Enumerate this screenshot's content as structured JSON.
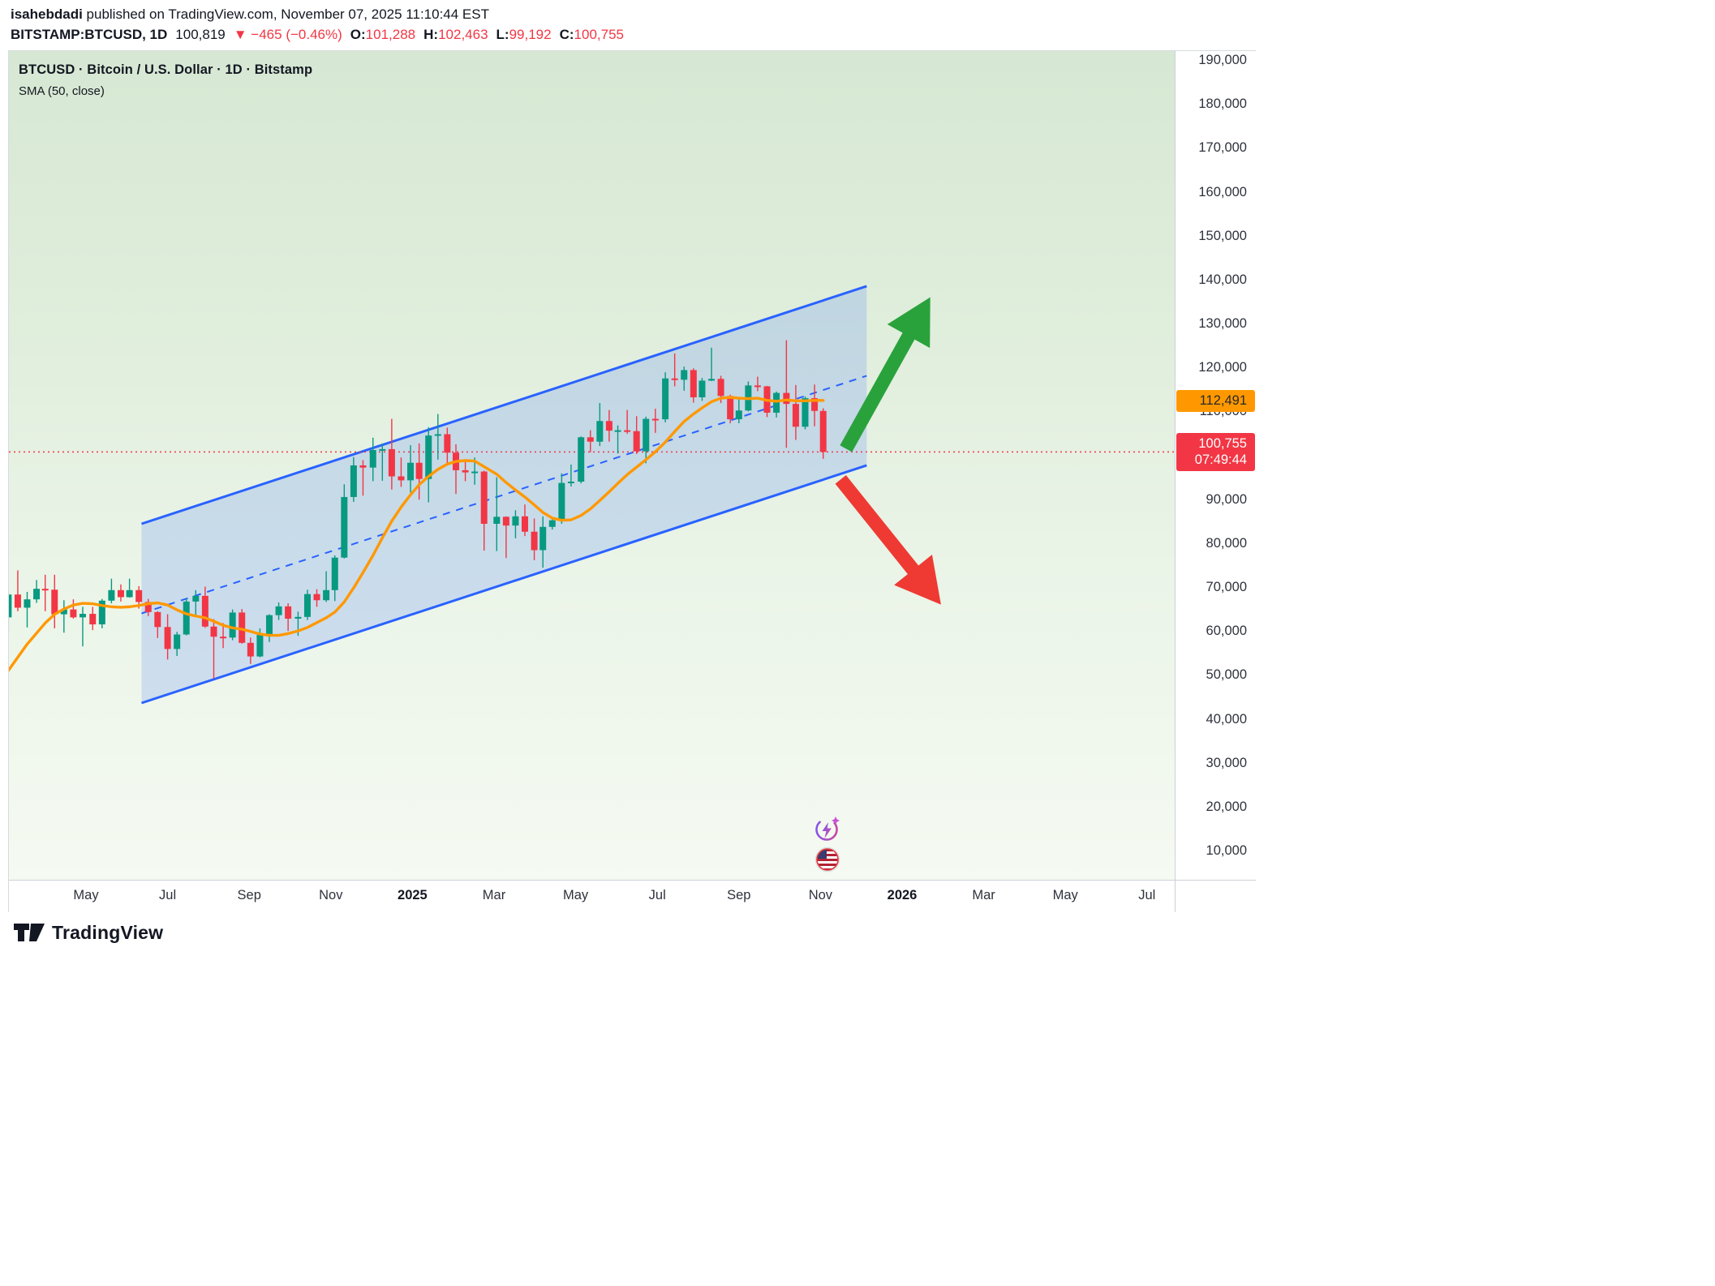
{
  "header": {
    "byline_user": "isahebdadi",
    "byline_rest": " published on TradingView.com, November 07, 2025 11:10:44 EST",
    "symbol": "BITSTAMP:BTCUSD, 1D",
    "last_price": "100,819",
    "change": "▼ −465 (−0.46%)",
    "ohlc": [
      {
        "label": "O:",
        "value": "101,288"
      },
      {
        "label": "H:",
        "value": "102,463"
      },
      {
        "label": "L:",
        "value": "99,192"
      },
      {
        "label": "C:",
        "value": "100,755"
      }
    ]
  },
  "chart": {
    "legend_title": "BTCUSD · Bitcoin / U.S. Dollar · 1D · Bitstamp",
    "legend_indicator": "SMA (50, close)",
    "sma_label": "112,491",
    "last_label": "100,755",
    "countdown": "07:49:44",
    "time_axis": [
      {
        "label": "May",
        "date": "2024-05-01",
        "bold": false
      },
      {
        "label": "Jul",
        "date": "2024-07-01",
        "bold": false
      },
      {
        "label": "Sep",
        "date": "2024-09-01",
        "bold": false
      },
      {
        "label": "Nov",
        "date": "2024-11-01",
        "bold": false
      },
      {
        "label": "2025",
        "date": "2025-01-01",
        "bold": true
      },
      {
        "label": "Mar",
        "date": "2025-03-01",
        "bold": false
      },
      {
        "label": "May",
        "date": "2025-05-01",
        "bold": false
      },
      {
        "label": "Jul",
        "date": "2025-07-01",
        "bold": false
      },
      {
        "label": "Sep",
        "date": "2025-09-01",
        "bold": false
      },
      {
        "label": "Nov",
        "date": "2025-11-01",
        "bold": false
      },
      {
        "label": "2026",
        "date": "2026-01-01",
        "bold": true
      },
      {
        "label": "Mar",
        "date": "2026-03-01",
        "bold": false
      },
      {
        "label": "May",
        "date": "2026-05-01",
        "bold": false
      },
      {
        "label": "Jul",
        "date": "2026-07-01",
        "bold": false
      }
    ]
  },
  "footer": {
    "logo_text": "TradingView"
  },
  "chart_data": {
    "type": "candlestick",
    "title": "BTCUSD · Bitcoin / U.S. Dollar · 1D · Bitstamp",
    "exchange": "Bitstamp",
    "interval": "1D",
    "price_unit": "USD",
    "note": "weekly OHLC estimates read from chart pixels",
    "ylim": [
      3000,
      192000
    ],
    "visible_time_range": [
      "2024-03-01",
      "2026-07-20"
    ],
    "gridlines": [
      190000,
      180000,
      170000,
      160000,
      150000,
      140000,
      130000,
      120000,
      110000,
      100000,
      90000,
      80000,
      70000,
      60000,
      50000,
      40000,
      30000,
      20000,
      10000
    ],
    "last_price": 100755,
    "sma_last": 112491,
    "colors": {
      "up": "#089981",
      "down": "#f23645",
      "sma": "#ff9800",
      "channel": "#2962ff"
    },
    "columns": [
      "week_start",
      "open",
      "high",
      "low",
      "close"
    ],
    "candles": [
      [
        "2024-03-04",
        63100,
        69000,
        59700,
        68300
      ],
      [
        "2024-03-11",
        68300,
        73800,
        64500,
        65300
      ],
      [
        "2024-03-18",
        65300,
        68900,
        60800,
        67200
      ],
      [
        "2024-03-25",
        67200,
        71600,
        66400,
        69600
      ],
      [
        "2024-04-01",
        69600,
        72800,
        64500,
        69400
      ],
      [
        "2024-04-08",
        69400,
        72800,
        60600,
        63800
      ],
      [
        "2024-04-15",
        63800,
        67000,
        59600,
        64900
      ],
      [
        "2024-04-22",
        64900,
        67200,
        62800,
        63100
      ],
      [
        "2024-04-29",
        63100,
        65500,
        56500,
        63900
      ],
      [
        "2024-05-06",
        63900,
        65500,
        60200,
        61500
      ],
      [
        "2024-05-13",
        61500,
        67300,
        60600,
        66900
      ],
      [
        "2024-05-20",
        66900,
        71900,
        66300,
        69300
      ],
      [
        "2024-05-27",
        69300,
        70600,
        66700,
        67700
      ],
      [
        "2024-06-03",
        67700,
        71900,
        67600,
        69300
      ],
      [
        "2024-06-10",
        69300,
        70200,
        65100,
        66600
      ],
      [
        "2024-06-17",
        66600,
        67300,
        63400,
        64300
      ],
      [
        "2024-06-24",
        64300,
        64500,
        58400,
        60900
      ],
      [
        "2024-07-01",
        60900,
        63800,
        53500,
        55900
      ],
      [
        "2024-07-08",
        55900,
        59800,
        54300,
        59200
      ],
      [
        "2024-07-15",
        59200,
        67400,
        59000,
        66700
      ],
      [
        "2024-07-22",
        66700,
        69300,
        63500,
        68000
      ],
      [
        "2024-07-29",
        68000,
        70100,
        60700,
        61000
      ],
      [
        "2024-08-05",
        61000,
        62700,
        49100,
        58700
      ],
      [
        "2024-08-12",
        58700,
        61800,
        56100,
        58500
      ],
      [
        "2024-08-19",
        58500,
        64900,
        57900,
        64200
      ],
      [
        "2024-08-26",
        64200,
        65000,
        57100,
        57300
      ],
      [
        "2024-09-02",
        57300,
        58500,
        52500,
        54200
      ],
      [
        "2024-09-09",
        54200,
        60600,
        54000,
        59100
      ],
      [
        "2024-09-16",
        59100,
        63800,
        57500,
        63600
      ],
      [
        "2024-09-23",
        63600,
        66500,
        62500,
        65600
      ],
      [
        "2024-09-30",
        65600,
        66300,
        60000,
        62800
      ],
      [
        "2024-10-07",
        62800,
        64400,
        58900,
        63200
      ],
      [
        "2024-10-14",
        63200,
        69400,
        62500,
        68400
      ],
      [
        "2024-10-21",
        68400,
        69500,
        65500,
        67000
      ],
      [
        "2024-10-28",
        67000,
        73600,
        66600,
        69300
      ],
      [
        "2024-11-04",
        69300,
        77200,
        66800,
        76700
      ],
      [
        "2024-11-11",
        76700,
        93400,
        76500,
        90500
      ],
      [
        "2024-11-18",
        90500,
        99600,
        89400,
        97700
      ],
      [
        "2024-11-25",
        97700,
        98900,
        90800,
        97200
      ],
      [
        "2024-12-02",
        97200,
        104000,
        94100,
        101200
      ],
      [
        "2024-12-09",
        101200,
        102700,
        94200,
        101400
      ],
      [
        "2024-12-16",
        101400,
        108300,
        92200,
        95200
      ],
      [
        "2024-12-23",
        95200,
        99500,
        92800,
        94300
      ],
      [
        "2024-12-30",
        94300,
        102300,
        91500,
        98300
      ],
      [
        "2025-01-06",
        98300,
        102700,
        89900,
        94600
      ],
      [
        "2025-01-13",
        94600,
        106400,
        89300,
        104500
      ],
      [
        "2025-01-20",
        104500,
        109400,
        99000,
        104800
      ],
      [
        "2025-01-27",
        104800,
        106300,
        97800,
        100600
      ],
      [
        "2025-02-03",
        100600,
        102500,
        91200,
        96600
      ],
      [
        "2025-02-10",
        96600,
        98800,
        94100,
        96100
      ],
      [
        "2025-02-17",
        96100,
        99500,
        93300,
        96300
      ],
      [
        "2025-02-24",
        96300,
        96500,
        78300,
        84400
      ],
      [
        "2025-03-03",
        84400,
        95000,
        78200,
        86000
      ],
      [
        "2025-03-10",
        86000,
        86100,
        76600,
        84000
      ],
      [
        "2025-03-17",
        84000,
        87500,
        81100,
        86100
      ],
      [
        "2025-03-24",
        86100,
        88800,
        81600,
        82600
      ],
      [
        "2025-03-31",
        82600,
        85600,
        76100,
        78400
      ],
      [
        "2025-04-07",
        78400,
        86100,
        74400,
        83700
      ],
      [
        "2025-04-14",
        83700,
        85400,
        83100,
        85200
      ],
      [
        "2025-04-21",
        85200,
        95900,
        84400,
        93700
      ],
      [
        "2025-04-28",
        93700,
        97900,
        92900,
        94000
      ],
      [
        "2025-05-05",
        94000,
        104300,
        93600,
        104100
      ],
      [
        "2025-05-12",
        104100,
        105700,
        100700,
        103100
      ],
      [
        "2025-05-19",
        103100,
        111900,
        102100,
        107800
      ],
      [
        "2025-05-26",
        107800,
        110300,
        103100,
        105600
      ],
      [
        "2025-06-02",
        105600,
        106800,
        100400,
        105700
      ],
      [
        "2025-06-09",
        105700,
        110300,
        104900,
        105500
      ],
      [
        "2025-06-16",
        105500,
        108900,
        100300,
        100900
      ],
      [
        "2025-06-23",
        100900,
        108800,
        98200,
        108300
      ],
      [
        "2025-06-30",
        108300,
        110600,
        105100,
        108200
      ],
      [
        "2025-07-07",
        108200,
        118900,
        107500,
        117500
      ],
      [
        "2025-07-14",
        117500,
        123200,
        115700,
        117200
      ],
      [
        "2025-07-21",
        117200,
        120200,
        114700,
        119400
      ],
      [
        "2025-07-28",
        119400,
        119800,
        112000,
        113200
      ],
      [
        "2025-08-04",
        113200,
        117600,
        112400,
        117000
      ],
      [
        "2025-08-11",
        117000,
        124500,
        116900,
        117400
      ],
      [
        "2025-08-18",
        117400,
        118100,
        111900,
        113500
      ],
      [
        "2025-08-25",
        113500,
        113800,
        107300,
        108200
      ],
      [
        "2025-09-01",
        108200,
        113300,
        107300,
        110200
      ],
      [
        "2025-09-08",
        110200,
        116800,
        110000,
        115900
      ],
      [
        "2025-09-15",
        115900,
        117900,
        114600,
        115700
      ],
      [
        "2025-09-22",
        115700,
        115800,
        108700,
        109700
      ],
      [
        "2025-09-29",
        109700,
        114500,
        108600,
        114200
      ],
      [
        "2025-10-06",
        114200,
        126200,
        101700,
        111700
      ],
      [
        "2025-10-13",
        111700,
        116000,
        103500,
        106500
      ],
      [
        "2025-10-20",
        106500,
        113400,
        105900,
        113000
      ],
      [
        "2025-10-27",
        113000,
        116100,
        106600,
        110100
      ],
      [
        "2025-11-03",
        110100,
        110700,
        99200,
        100755
      ]
    ],
    "sma50": [
      51000,
      54000,
      57000,
      59500,
      61800,
      63800,
      65000,
      65900,
      66300,
      66200,
      65800,
      65500,
      65400,
      65500,
      65800,
      66200,
      66400,
      65900,
      64800,
      63900,
      63400,
      63000,
      62200,
      61300,
      60700,
      60400,
      59900,
      59300,
      59000,
      59000,
      59400,
      60000,
      60800,
      61900,
      63000,
      64300,
      66600,
      69800,
      73300,
      77200,
      81200,
      85000,
      88200,
      91000,
      93300,
      95200,
      96800,
      98000,
      98600,
      98800,
      98700,
      97400,
      95700,
      93800,
      92100,
      90500,
      88700,
      87000,
      85700,
      85200,
      85300,
      86300,
      87800,
      89700,
      91700,
      93600,
      95600,
      97300,
      99000,
      100800,
      103000,
      105400,
      107700,
      109400,
      110800,
      112200,
      113000,
      113200,
      113000,
      112900,
      113000,
      112500,
      112300,
      112600,
      112400,
      112400,
      112500,
      112491
    ],
    "channel": {
      "type": "parallel-channel",
      "x1": "2024-06-12",
      "x2": "2025-12-05",
      "upper": [
        84400,
        138500
      ],
      "lower": [
        43600,
        97700
      ],
      "mid_dashed": true,
      "color": "#2962ff",
      "fill": "rgba(41,98,255,0.17)"
    },
    "arrows": [
      {
        "dir": "up",
        "color": "#2aa23c",
        "from": [
          "2025-11-20",
          101500
        ],
        "to": [
          "2026-01-22",
          136000
        ]
      },
      {
        "dir": "down",
        "color": "#ee3a33",
        "from": [
          "2025-11-16",
          94500
        ],
        "to": [
          "2026-01-30",
          66000
        ]
      }
    ],
    "events": [
      {
        "date": "2025-11-06",
        "icon": "ai-sparkle-badge",
        "slot": 0
      },
      {
        "date": "2025-11-06",
        "icon": "us-flag-badge",
        "slot": 1
      }
    ]
  }
}
